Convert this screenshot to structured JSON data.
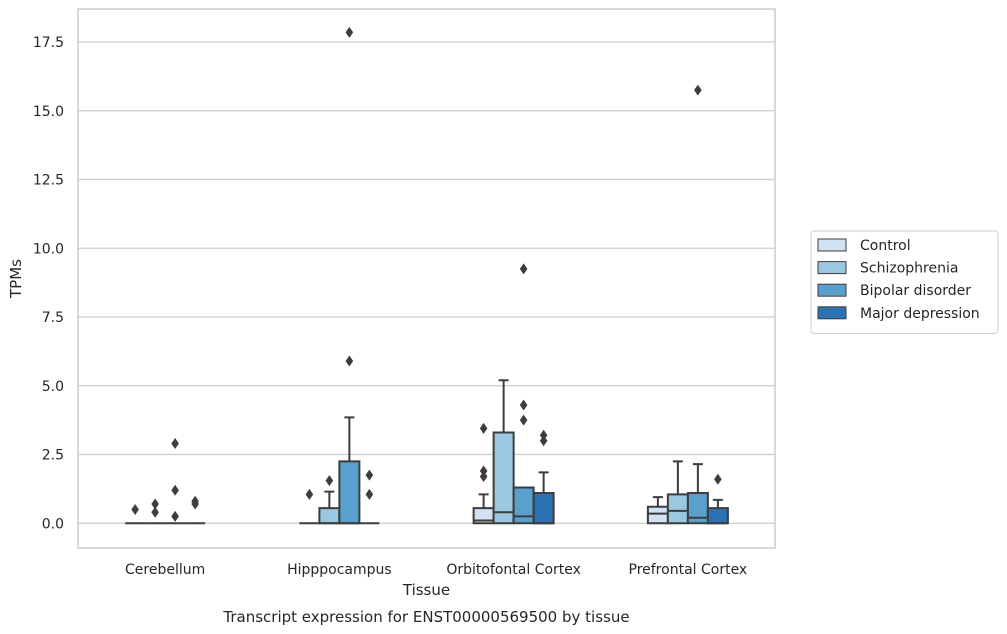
{
  "caption": "Transcript expression for ENST00000569500 by tissue",
  "chart_data": {
    "type": "box",
    "xlabel": "Tissue",
    "ylabel": "TPMs",
    "ylim": [
      -0.9,
      18.7
    ],
    "yticks": [
      0.0,
      2.5,
      5.0,
      7.5,
      10.0,
      12.5,
      15.0,
      17.5
    ],
    "ytick_labels": [
      "0.0",
      "2.5",
      "5.0",
      "7.5",
      "10.0",
      "12.5",
      "15.0",
      "17.5"
    ],
    "grid": "horizontal",
    "legend_position": "right",
    "categories": [
      "Cerebellum",
      "Hipppocampus",
      "Orbitofontal Cortex",
      "Prefrontal Cortex"
    ],
    "series": [
      {
        "name": "Control",
        "color": "#d1e2f2",
        "boxes": [
          {
            "q1": 0,
            "median": 0,
            "q3": 0,
            "whisker_low": 0,
            "whisker_high": 0,
            "outliers": [
              0.5
            ]
          },
          {
            "q1": 0,
            "median": 0,
            "q3": 0,
            "whisker_low": 0,
            "whisker_high": 0,
            "outliers": [
              1.05
            ]
          },
          {
            "q1": 0,
            "median": 0.1,
            "q3": 0.55,
            "whisker_low": 0,
            "whisker_high": 1.05,
            "outliers": [
              1.7,
              1.9,
              3.45
            ]
          },
          {
            "q1": 0,
            "median": 0.35,
            "q3": 0.6,
            "whisker_low": 0,
            "whisker_high": 0.95,
            "outliers": []
          }
        ]
      },
      {
        "name": "Schizophrenia",
        "color": "#9ac8e0",
        "boxes": [
          {
            "q1": 0,
            "median": 0,
            "q3": 0,
            "whisker_low": 0,
            "whisker_high": 0,
            "outliers": [
              0.4,
              0.7
            ]
          },
          {
            "q1": 0,
            "median": 0,
            "q3": 0.55,
            "whisker_low": 0,
            "whisker_high": 1.15,
            "outliers": [
              1.55
            ]
          },
          {
            "q1": 0,
            "median": 0.4,
            "q3": 3.3,
            "whisker_low": 0,
            "whisker_high": 5.2,
            "outliers": []
          },
          {
            "q1": 0,
            "median": 0.45,
            "q3": 1.05,
            "whisker_low": 0,
            "whisker_high": 2.25,
            "outliers": []
          }
        ]
      },
      {
        "name": "Bipolar disorder",
        "color": "#5aa0cd",
        "boxes": [
          {
            "q1": 0,
            "median": 0,
            "q3": 0,
            "whisker_low": 0,
            "whisker_high": 0,
            "outliers": [
              0.25,
              1.2,
              2.9
            ]
          },
          {
            "q1": 0,
            "median": 0,
            "q3": 2.25,
            "whisker_low": 0,
            "whisker_high": 3.85,
            "outliers": [
              5.9,
              17.85
            ]
          },
          {
            "q1": 0,
            "median": 0.25,
            "q3": 1.3,
            "whisker_low": 0,
            "whisker_high": 1.3,
            "outliers": [
              3.75,
              4.3,
              9.25
            ]
          },
          {
            "q1": 0,
            "median": 0.2,
            "q3": 1.1,
            "whisker_low": 0,
            "whisker_high": 2.15,
            "outliers": [
              15.75
            ]
          }
        ]
      },
      {
        "name": "Major depression",
        "color": "#2c72b2",
        "boxes": [
          {
            "q1": 0,
            "median": 0,
            "q3": 0,
            "whisker_low": 0,
            "whisker_high": 0,
            "outliers": [
              0.7,
              0.8
            ]
          },
          {
            "q1": 0,
            "median": 0,
            "q3": 0,
            "whisker_low": 0,
            "whisker_high": 0,
            "outliers": [
              1.05,
              1.75
            ]
          },
          {
            "q1": 0,
            "median": 0,
            "q3": 1.1,
            "whisker_low": 0,
            "whisker_high": 1.85,
            "outliers": [
              3.0,
              3.2
            ]
          },
          {
            "q1": 0,
            "median": 0,
            "q3": 0.55,
            "whisker_low": 0,
            "whisker_high": 0.85,
            "outliers": [
              1.6
            ]
          }
        ]
      }
    ]
  }
}
